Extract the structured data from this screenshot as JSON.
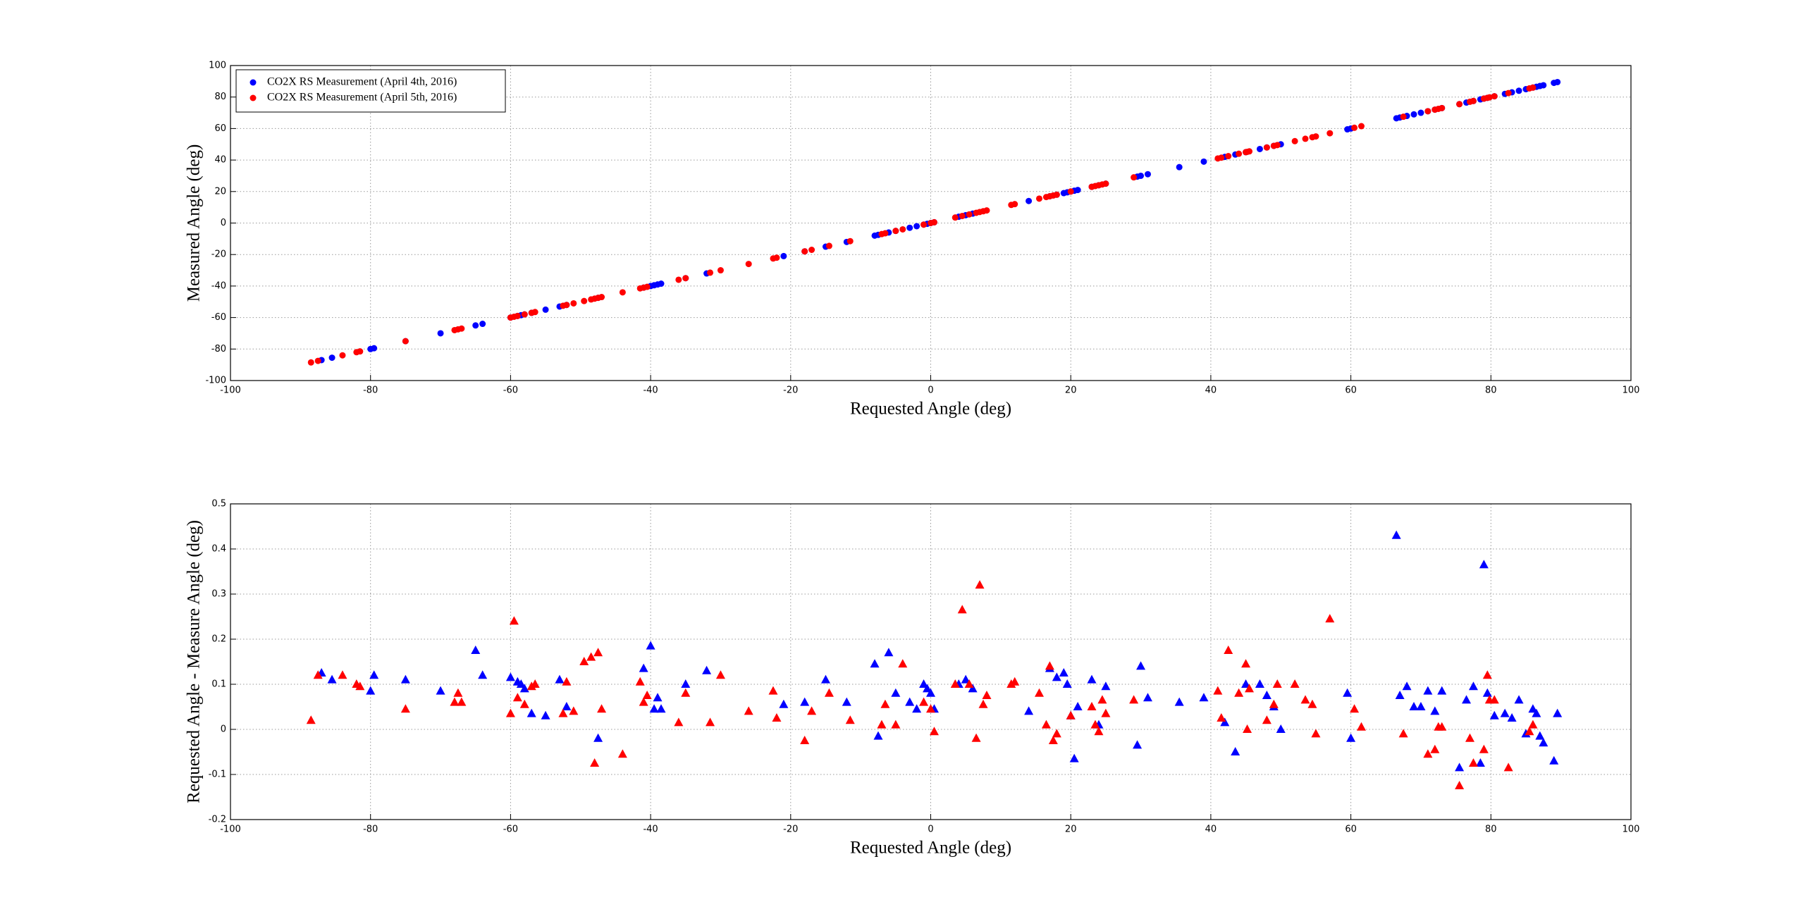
{
  "chart_data": [
    {
      "type": "scatter",
      "xlabel": "Requested Angle (deg)",
      "ylabel": "Measured Angle (deg)",
      "xlim": [
        -100,
        100
      ],
      "ylim": [
        -100,
        100
      ],
      "xticks": [
        -100,
        -80,
        -60,
        -40,
        -20,
        0,
        20,
        40,
        60,
        80,
        100
      ],
      "yticks": [
        -100,
        -80,
        -60,
        -40,
        -20,
        0,
        20,
        40,
        60,
        80,
        100
      ],
      "grid": true,
      "legend": "upper left",
      "marker": "circle",
      "series": [
        {
          "name": "CO2X RS Measurement (April 4th, 2016)",
          "color": "#0000ff",
          "x": [
            -87,
            -85.5,
            -80,
            -79.5,
            -75,
            -70,
            -65,
            -64,
            -60,
            -59,
            -58.5,
            -58,
            -57,
            -55,
            -53,
            -52,
            -47.5,
            -41,
            -40,
            -39.5,
            -39,
            -38.5,
            -35,
            -32,
            -21,
            -18,
            -15,
            -12,
            -8,
            -7.5,
            -6,
            -5,
            -3,
            -2,
            -1,
            -0.5,
            0,
            0.5,
            4,
            5,
            6,
            14,
            17,
            18,
            19,
            19.5,
            20,
            20.5,
            21,
            23,
            24,
            25,
            29.5,
            30,
            31,
            35.5,
            39,
            42,
            43.5,
            45,
            47,
            48,
            49,
            50,
            59.5,
            60,
            66.5,
            67,
            68,
            69,
            70,
            71,
            72,
            73,
            75.5,
            76.5,
            77.5,
            78.5,
            79,
            79.5,
            80.5,
            82,
            83,
            84,
            85,
            86,
            86.5,
            87,
            87.5,
            89,
            89.5
          ],
          "values": [
            -87,
            -85.5,
            -80,
            -79.5,
            -75,
            -70,
            -65,
            -64,
            -60,
            -59,
            -58.5,
            -58,
            -57,
            -55,
            -53,
            -52,
            -47.5,
            -41,
            -40,
            -39.5,
            -39,
            -38.5,
            -35,
            -32,
            -21,
            -18,
            -15,
            -12,
            -8,
            -7.5,
            -6,
            -5,
            -3,
            -2,
            -1,
            -0.5,
            0,
            0.5,
            4,
            5,
            6,
            14,
            17,
            18,
            19,
            19.5,
            20,
            20.5,
            21,
            23,
            24,
            25,
            29.5,
            30,
            31,
            35.5,
            39,
            42,
            43.5,
            45,
            47,
            48,
            49,
            50,
            59.5,
            60,
            66.5,
            67,
            68,
            69,
            70,
            71,
            72,
            73,
            75.5,
            76.5,
            77.5,
            78.5,
            79,
            79.5,
            80.5,
            82,
            83,
            84,
            85,
            86,
            86.5,
            87,
            87.5,
            89,
            89.5
          ]
        },
        {
          "name": "CO2X RS Measurement (April 5th, 2016)",
          "color": "#ff0000",
          "x": [
            -88.5,
            -87.5,
            -84,
            -82,
            -81.5,
            -75,
            -68,
            -67.5,
            -67,
            -60,
            -59.5,
            -59,
            -58,
            -57,
            -56.5,
            -52.5,
            -52,
            -51,
            -49.5,
            -48.5,
            -48,
            -47.5,
            -47,
            -44,
            -41.5,
            -41,
            -40.5,
            -36,
            -35,
            -31.5,
            -30,
            -26,
            -22.5,
            -22,
            -18,
            -17,
            -14.5,
            -11.5,
            -7,
            -6.5,
            -5,
            -4,
            -1,
            0,
            0.5,
            3.5,
            4.5,
            5.5,
            6.5,
            7,
            7.5,
            8,
            11.5,
            12,
            15.5,
            16.5,
            17,
            17.5,
            18,
            20,
            23,
            23.5,
            24,
            24.5,
            25,
            29,
            41,
            41.5,
            42.5,
            44,
            45,
            45.2,
            45.5,
            48,
            49,
            49.5,
            52,
            53.5,
            54.5,
            55,
            57,
            60.5,
            61.5,
            67.5,
            71,
            72,
            72.5,
            73,
            77,
            77.5,
            79,
            79.5,
            79.8,
            80.5,
            82.5,
            75.5,
            85.5,
            86
          ],
          "values": [
            -88.5,
            -87.5,
            -84,
            -82,
            -81.5,
            -75,
            -68,
            -67.5,
            -67,
            -60,
            -59.5,
            -59,
            -58,
            -57,
            -56.5,
            -52.5,
            -52,
            -51,
            -49.5,
            -48.5,
            -48,
            -47.5,
            -47,
            -44,
            -41.5,
            -41,
            -40.5,
            -36,
            -35,
            -31.5,
            -30,
            -26,
            -22.5,
            -22,
            -18,
            -17,
            -14.5,
            -11.5,
            -7,
            -6.5,
            -5,
            -4,
            -1,
            0,
            0.5,
            3.5,
            4.5,
            5.5,
            6.5,
            7,
            7.5,
            8,
            11.5,
            12,
            15.5,
            16.5,
            17,
            17.5,
            18,
            20,
            23,
            23.5,
            24,
            24.5,
            25,
            29,
            41,
            41.5,
            42.5,
            44,
            45,
            45.2,
            45.5,
            48,
            49,
            49.5,
            52,
            53.5,
            54.5,
            55,
            57,
            60.5,
            61.5,
            67.5,
            71,
            72,
            72.5,
            73,
            77,
            77.5,
            79,
            79.5,
            79.8,
            80.5,
            82.5,
            75.5,
            85.5,
            86
          ]
        }
      ]
    },
    {
      "type": "scatter",
      "xlabel": "Requested Angle (deg)",
      "ylabel": "Requested Angle - Measure Angle (deg)",
      "xlim": [
        -100,
        100
      ],
      "ylim": [
        -0.2,
        0.5
      ],
      "xticks": [
        -100,
        -80,
        -60,
        -40,
        -20,
        0,
        20,
        40,
        60,
        80,
        100
      ],
      "yticks": [
        -0.2,
        -0.1,
        0,
        0.1,
        0.2,
        0.3,
        0.4,
        0.5
      ],
      "grid": true,
      "marker": "triangle",
      "series": [
        {
          "color": "#0000ff",
          "x": [
            -87,
            -85.5,
            -80,
            -79.5,
            -75,
            -70,
            -65,
            -64,
            -60,
            -59,
            -58.5,
            -58,
            -57,
            -55,
            -53,
            -52,
            -47.5,
            -41,
            -40,
            -39.5,
            -39,
            -38.5,
            -35,
            -32,
            -21,
            -18,
            -15,
            -12,
            -8,
            -7.5,
            -6,
            -5,
            -3,
            -2,
            -1,
            -0.5,
            0,
            0.5,
            4,
            5,
            6,
            14,
            17,
            18,
            19,
            19.5,
            20,
            20.5,
            21,
            23,
            24,
            25,
            29.5,
            30,
            31,
            35.5,
            39,
            42,
            43.5,
            45,
            47,
            48,
            49,
            50,
            59.5,
            60,
            66.5,
            67,
            68,
            69,
            70,
            71,
            72,
            73,
            75.5,
            76.5,
            77.5,
            78.5,
            79,
            79.5,
            80.5,
            82,
            83,
            84,
            85,
            86,
            86.5,
            87,
            87.5,
            89,
            89.5
          ],
          "values": [
            0.125,
            0.11,
            0.085,
            0.12,
            0.11,
            0.085,
            0.175,
            0.12,
            0.115,
            0.105,
            0.1,
            0.09,
            0.035,
            0.03,
            0.11,
            0.05,
            -0.02,
            0.135,
            0.185,
            0.045,
            0.07,
            0.045,
            0.1,
            0.13,
            0.055,
            0.06,
            0.11,
            0.06,
            0.145,
            -0.015,
            0.17,
            0.08,
            0.06,
            0.045,
            0.1,
            0.09,
            0.08,
            0.045,
            0.1,
            0.11,
            0.09,
            0.04,
            0.135,
            0.115,
            0.125,
            0.1,
            0.03,
            -0.065,
            0.05,
            0.11,
            0.01,
            0.095,
            -0.035,
            0.14,
            0.07,
            0.06,
            0.07,
            0.015,
            -0.05,
            0.1,
            0.1,
            0.075,
            0.05,
            0,
            0.08,
            -0.02,
            0.43,
            0.075,
            0.095,
            0.05,
            0.05,
            0.085,
            0.04,
            0.085,
            -0.085,
            0.065,
            0.095,
            -0.075,
            0.365,
            0.08,
            0.03,
            0.035,
            0.025,
            0.065,
            -0.01,
            0.045,
            0.035,
            -0.015,
            -0.03,
            -0.07,
            0.035
          ]
        },
        {
          "color": "#ff0000",
          "x": [
            -88.5,
            -87.5,
            -84,
            -82,
            -81.5,
            -75,
            -68,
            -67.5,
            -67,
            -60,
            -59.5,
            -59,
            -58,
            -57,
            -56.5,
            -52.5,
            -52,
            -51,
            -49.5,
            -48.5,
            -48,
            -47.5,
            -47,
            -44,
            -41.5,
            -41,
            -40.5,
            -36,
            -35,
            -31.5,
            -30,
            -26,
            -22.5,
            -22,
            -18,
            -17,
            -14.5,
            -11.5,
            -7,
            -6.5,
            -5,
            -4,
            -1,
            0,
            0.5,
            3.5,
            4.5,
            5.5,
            6.5,
            7,
            7.5,
            8,
            11.5,
            12,
            15.5,
            16.5,
            17,
            17.5,
            18,
            20,
            23,
            23.5,
            24,
            24.5,
            25,
            29,
            41,
            41.5,
            42.5,
            44,
            45,
            45.2,
            45.5,
            48,
            49,
            49.5,
            52,
            53.5,
            54.5,
            55,
            57,
            60.5,
            61.5,
            67.5,
            71,
            72,
            72.5,
            73,
            77,
            77.5,
            79,
            79.5,
            79.8,
            80.5,
            82.5,
            75.5,
            85.5,
            86
          ],
          "values": [
            0.02,
            0.12,
            0.12,
            0.1,
            0.095,
            0.045,
            0.06,
            0.08,
            0.06,
            0.035,
            0.24,
            0.07,
            0.055,
            0.095,
            0.1,
            0.035,
            0.105,
            0.04,
            0.15,
            0.16,
            -0.075,
            0.17,
            0.045,
            -0.055,
            0.105,
            0.06,
            0.075,
            0.015,
            0.08,
            0.015,
            0.12,
            0.04,
            0.085,
            0.025,
            -0.025,
            0.04,
            0.08,
            0.02,
            0.01,
            0.055,
            0.01,
            0.145,
            0.06,
            0.045,
            -0.005,
            0.1,
            0.265,
            0.1,
            -0.02,
            0.32,
            0.055,
            0.075,
            0.1,
            0.105,
            0.08,
            0.01,
            0.14,
            -0.025,
            -0.01,
            0.03,
            0.05,
            0.01,
            -0.005,
            0.065,
            0.035,
            0.065,
            0.085,
            0.025,
            0.175,
            0.08,
            0.145,
            0,
            0.09,
            0.02,
            0.055,
            0.1,
            0.1,
            0.065,
            0.055,
            -0.01,
            0.245,
            0.045,
            0.005,
            -0.01,
            -0.055,
            -0.045,
            0.005,
            0.005,
            -0.02,
            -0.075,
            -0.045,
            0.12,
            0.065,
            0.065,
            -0.085,
            -0.125,
            -0.005,
            0.01
          ]
        }
      ]
    }
  ]
}
